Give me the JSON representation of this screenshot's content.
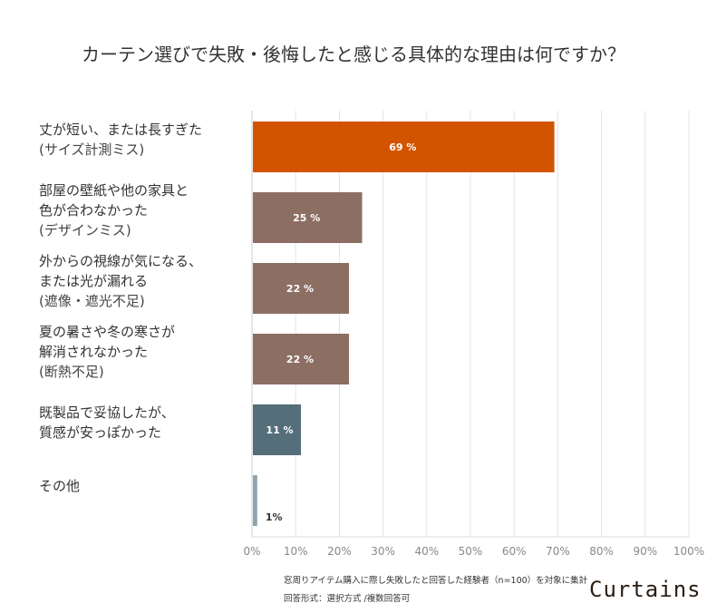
{
  "chart_data": {
    "type": "bar",
    "orientation": "horizontal",
    "title": "カーテン選びで失敗・後悔したと感じる具体的な理由は何ですか？",
    "categories": [
      {
        "lines": [
          "丈が短い、または長すぎた"
        ],
        "sub": "(サイズ計測ミス)"
      },
      {
        "lines": [
          "部屋の壁紙や他の家具と",
          "色が合わなかった"
        ],
        "sub": "(デザインミス)"
      },
      {
        "lines": [
          "外からの視線が気になる、",
          "または光が漏れる"
        ],
        "sub": "(遮像・遮光不足)"
      },
      {
        "lines": [
          "夏の暑さや冬の寒さが",
          "解消されなかった"
        ],
        "sub": "(断熱不足)"
      },
      {
        "lines": [
          "既製品で妥協したが、",
          "質感が安っぽかった"
        ],
        "sub": ""
      },
      {
        "lines": [
          "その他"
        ],
        "sub": ""
      }
    ],
    "values": [
      69,
      25,
      22,
      22,
      11,
      1
    ],
    "value_labels": [
      "69 %",
      "25 %",
      "22 %",
      "22 %",
      "11 %",
      "1%"
    ],
    "colors": [
      "#d35400",
      "#8d6e63",
      "#8d6e63",
      "#8d6e63",
      "#546e7a",
      "#90a4ae"
    ],
    "xlim": [
      0,
      100
    ],
    "xticks": [
      "0%",
      "10%",
      "20%",
      "30%",
      "40%",
      "50%",
      "60%",
      "70%",
      "80%",
      "90%",
      "100%"
    ],
    "grid": true
  },
  "footnote": {
    "line1": "窓周りアイテム購入に際し失敗したと回答した経験者（n=100）を対象に集計",
    "line2": "回答形式：選択方式 /複数回答可"
  },
  "logo": "Curtains"
}
